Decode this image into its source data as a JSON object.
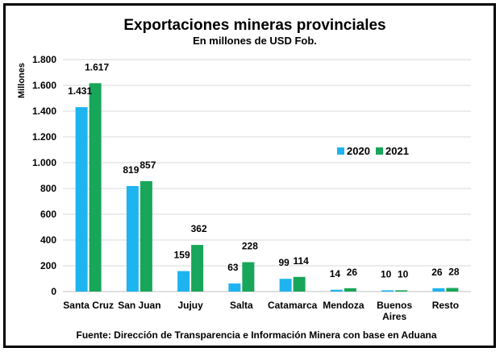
{
  "chart_data": {
    "type": "bar",
    "title": "Exportaciones mineras provinciales",
    "subtitle": "En millones de USD Fob.",
    "ylabel": "Millones",
    "xlabel": "",
    "ylim": [
      0,
      1800
    ],
    "yticks": [
      0,
      200,
      400,
      600,
      800,
      1000,
      1200,
      1400,
      1600,
      1800
    ],
    "ytick_labels": [
      "0",
      "200",
      "400",
      "600",
      "800",
      "1.000",
      "1.200",
      "1.400",
      "1.600",
      "1.800"
    ],
    "grid": true,
    "legend_position": "right",
    "categories": [
      [
        "Santa Cruz"
      ],
      [
        "San Juan"
      ],
      [
        "Jujuy"
      ],
      [
        "Salta"
      ],
      [
        "Catamarca"
      ],
      [
        "Mendoza"
      ],
      [
        "Buenos",
        "Aires"
      ],
      [
        "Resto"
      ]
    ],
    "series": [
      {
        "name": "2020",
        "color": "#1EB4F0",
        "values": [
          1431,
          819,
          159,
          63,
          99,
          14,
          10,
          26
        ],
        "labels": [
          "1.431",
          "819",
          "159",
          "63",
          "99",
          "14",
          "10",
          "26"
        ]
      },
      {
        "name": "2021",
        "color": "#18A65A",
        "values": [
          1617,
          857,
          362,
          228,
          114,
          26,
          10,
          28
        ],
        "labels": [
          "1.617",
          "857",
          "362",
          "228",
          "114",
          "26",
          "10",
          "28"
        ]
      }
    ],
    "source": "Fuente: Dirección de Transparencia e Información Minera con base en Aduana"
  }
}
